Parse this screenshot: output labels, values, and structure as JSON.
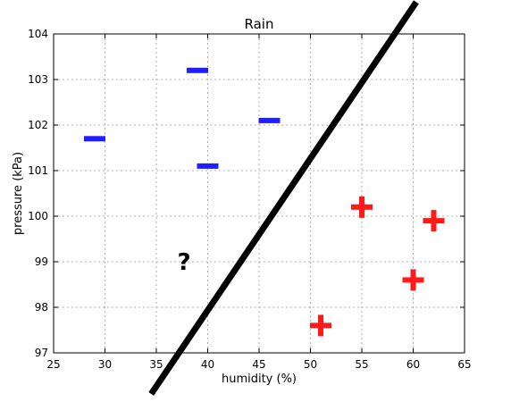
{
  "chart_data": {
    "type": "scatter",
    "title": "Rain",
    "xlabel": "humidity (%)",
    "ylabel": "pressure (kPa)",
    "xlim": [
      25,
      65
    ],
    "ylim": [
      97,
      104
    ],
    "x_ticks": [
      25,
      30,
      35,
      40,
      45,
      50,
      55,
      60,
      65
    ],
    "y_ticks": [
      97,
      98,
      99,
      100,
      101,
      102,
      103,
      104
    ],
    "grid": true,
    "series": [
      {
        "marker": "minus",
        "color": "#1f1fff",
        "points": [
          {
            "x": 29,
            "y": 101.7
          },
          {
            "x": 39,
            "y": 103.2
          },
          {
            "x": 46,
            "y": 102.1
          },
          {
            "x": 40,
            "y": 101.1
          }
        ]
      },
      {
        "marker": "plus",
        "color": "#ff1a1a",
        "points": [
          {
            "x": 55,
            "y": 100.2
          },
          {
            "x": 62,
            "y": 99.9
          },
          {
            "x": 60,
            "y": 98.6
          },
          {
            "x": 51,
            "y": 97.6
          }
        ]
      }
    ],
    "boundary_line": {
      "x1": 34.5,
      "y1": 96.1,
      "x2": 60.3,
      "y2": 104.7,
      "color": "#000000"
    },
    "annotation": {
      "text": "?",
      "x": 37.7,
      "y": 99
    }
  }
}
